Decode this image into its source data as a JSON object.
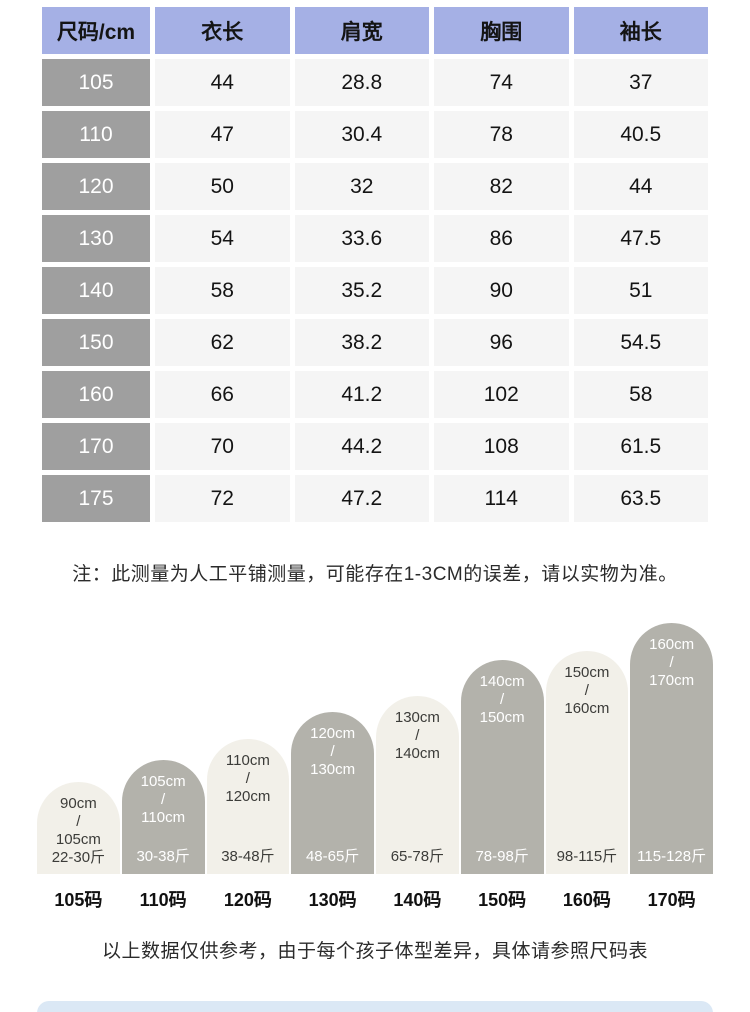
{
  "page": {
    "note": "注：此测量为人工平铺测量，可能存在1-3CM的误差，请以实物为准。",
    "footer_note": "以上数据仅供参考，由于每个孩子体型差异，具体请参照尺码表"
  },
  "colors": {
    "header_bg": "#a5b0e5",
    "size_column_bg": "#9f9f9f",
    "data_cell_bg": "#f5f5f5",
    "bar_light_bg": "#f2f0e9",
    "bar_dark_bg": "#b3b2ab",
    "bar_dark_text": "#ffffff",
    "bottom_section_bg": "#dbe8f5"
  },
  "chart_data": [
    {
      "type": "table",
      "columns": [
        "尺码/cm",
        "衣长",
        "肩宽",
        "胸围",
        "袖长"
      ],
      "rows": [
        [
          "105",
          "44",
          "28.8",
          "74",
          "37"
        ],
        [
          "110",
          "47",
          "30.4",
          "78",
          "40.5"
        ],
        [
          "120",
          "50",
          "32",
          "82",
          "44"
        ],
        [
          "130",
          "54",
          "33.6",
          "86",
          "47.5"
        ],
        [
          "140",
          "58",
          "35.2",
          "90",
          "51"
        ],
        [
          "150",
          "62",
          "38.2",
          "96",
          "54.5"
        ],
        [
          "160",
          "66",
          "41.2",
          "102",
          "58"
        ],
        [
          "170",
          "70",
          "44.2",
          "108",
          "61.5"
        ],
        [
          "175",
          "72",
          "47.2",
          "114",
          "63.5"
        ]
      ]
    },
    {
      "type": "bar",
      "title": "",
      "categories": [
        "105码",
        "110码",
        "120码",
        "130码",
        "140码",
        "150码",
        "160码",
        "170码"
      ],
      "legend_position": "none",
      "grid": false,
      "bars": [
        {
          "label": "105码",
          "lines": [
            "90cm",
            "/",
            "105cm"
          ],
          "weight": "22-30斤",
          "height_cm": [
            90,
            105
          ],
          "weight_jin": [
            22,
            30
          ],
          "bar_px": "92px",
          "variant": "light"
        },
        {
          "label": "110码",
          "lines": [
            "105cm",
            "/",
            "110cm"
          ],
          "weight": "30-38斤",
          "height_cm": [
            105,
            110
          ],
          "weight_jin": [
            30,
            38
          ],
          "bar_px": "114px",
          "variant": "dark"
        },
        {
          "label": "120码",
          "lines": [
            "110cm",
            "/",
            "120cm"
          ],
          "weight": "38-48斤",
          "height_cm": [
            110,
            120
          ],
          "weight_jin": [
            38,
            48
          ],
          "bar_px": "135px",
          "variant": "light"
        },
        {
          "label": "130码",
          "lines": [
            "120cm",
            "/",
            "130cm"
          ],
          "weight": "48-65斤",
          "height_cm": [
            120,
            130
          ],
          "weight_jin": [
            48,
            65
          ],
          "bar_px": "162px",
          "variant": "dark"
        },
        {
          "label": "140码",
          "lines": [
            "130cm",
            "/",
            "140cm"
          ],
          "weight": "65-78斤",
          "height_cm": [
            130,
            140
          ],
          "weight_jin": [
            65,
            78
          ],
          "bar_px": "178px",
          "variant": "light"
        },
        {
          "label": "150码",
          "lines": [
            "140cm",
            "/",
            "150cm"
          ],
          "weight": "78-98斤",
          "height_cm": [
            140,
            150
          ],
          "weight_jin": [
            78,
            98
          ],
          "bar_px": "214px",
          "variant": "dark"
        },
        {
          "label": "160码",
          "lines": [
            "150cm",
            "/",
            "160cm"
          ],
          "weight": "98-115斤",
          "height_cm": [
            150,
            160
          ],
          "weight_jin": [
            98,
            115
          ],
          "bar_px": "223px",
          "variant": "light"
        },
        {
          "label": "170码",
          "lines": [
            "160cm",
            "/",
            "170cm"
          ],
          "weight": "115-128斤",
          "height_cm": [
            160,
            170
          ],
          "weight_jin": [
            115,
            128
          ],
          "bar_px": "251px",
          "variant": "dark"
        }
      ]
    }
  ]
}
